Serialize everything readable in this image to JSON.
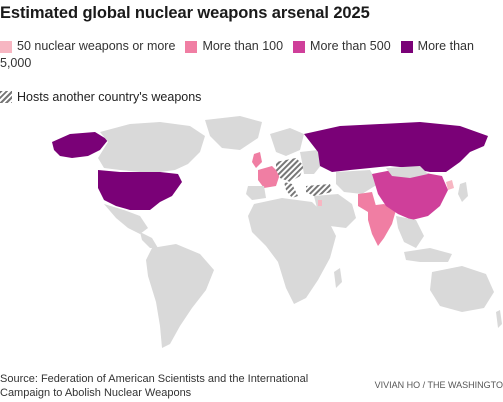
{
  "title": "Estimated global nuclear weapons arsenal 2025",
  "legend": {
    "items": [
      {
        "label": "50 nuclear weapons or more",
        "color": "#f7b6c2"
      },
      {
        "label": "More than 100",
        "color": "#f07ea3"
      },
      {
        "label": "More than 500",
        "color": "#cf3f9a"
      },
      {
        "label": "More than",
        "color": "#7a0177"
      }
    ],
    "overflow": "5,000",
    "hosts_label": "Hosts another country's weapons"
  },
  "colors": {
    "land": "#d9d9d9",
    "tier_50": "#f7b6c2",
    "tier_100": "#f07ea3",
    "tier_500": "#cf3f9a",
    "tier_5000": "#7a0177",
    "hatch": "#777777"
  },
  "source": "Source: Federation of American Scientists and the International Campaign to Abolish Nuclear Weapons",
  "credit": "VIVIAN HO / THE WASHINGTO"
}
